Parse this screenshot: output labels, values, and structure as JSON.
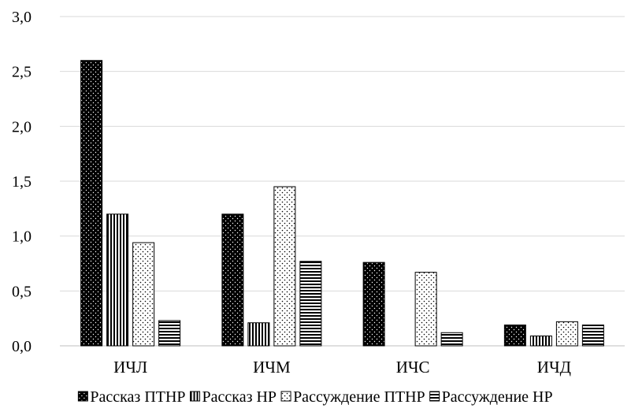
{
  "chart_data": {
    "type": "bar",
    "title": "",
    "xlabel": "",
    "ylabel": "",
    "categories": [
      "ИЧЛ",
      "ИЧМ",
      "ИЧС",
      "ИЧД"
    ],
    "series": [
      {
        "name": "Рассказ ПТНР",
        "pattern": "dots-dark",
        "values": [
          2.6,
          1.2,
          0.76,
          0.19
        ]
      },
      {
        "name": "Рассказ НР",
        "pattern": "vertical-lines",
        "values": [
          1.2,
          0.21,
          0.0,
          0.09
        ]
      },
      {
        "name": "Рассуждение ПТНР",
        "pattern": "dots-light",
        "values": [
          0.94,
          1.45,
          0.67,
          0.22
        ]
      },
      {
        "name": "Рассуждение НР",
        "pattern": "horizontal-lines",
        "values": [
          0.23,
          0.77,
          0.12,
          0.19
        ]
      }
    ],
    "ylim": [
      0,
      3.0
    ],
    "yticks": [
      "0,0",
      "0,5",
      "1,0",
      "1,5",
      "2,0",
      "2,5",
      "3,0"
    ],
    "ytick_values": [
      0,
      0.5,
      1.0,
      1.5,
      2.0,
      2.5,
      3.0
    ],
    "grid": true,
    "legend_position": "bottom"
  }
}
